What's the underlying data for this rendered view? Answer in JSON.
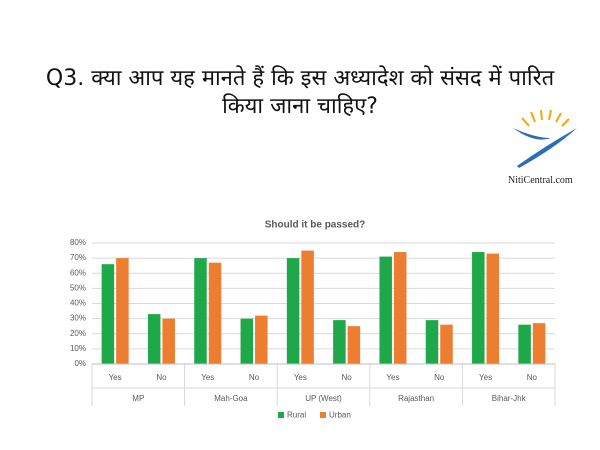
{
  "question_lines": [
    "Q3. क्या आप यह मानते हैं कि इस अध्यादेश को संसद में पारित",
    "किया जाना चाहिए?"
  ],
  "logo_text": "NitiCentral.com",
  "chart_data": {
    "type": "bar",
    "title": "Should it be passed?",
    "categories": [
      "Yes",
      "No",
      "Yes",
      "No",
      "Yes",
      "No",
      "Yes",
      "No",
      "Yes",
      "No"
    ],
    "groups": [
      "MP",
      "Mah-Goa",
      "UP (West)",
      "Rajasthan",
      "Bihar-Jhk"
    ],
    "series": [
      {
        "name": "Rural",
        "color": "#1fa84a",
        "values": [
          66,
          33,
          70,
          30,
          70,
          29,
          71,
          29,
          74,
          26
        ]
      },
      {
        "name": "Urban",
        "color": "#ed7d31",
        "values": [
          70,
          30,
          67,
          32,
          75,
          25,
          74,
          26,
          73,
          27
        ]
      }
    ],
    "ylim": [
      0,
      80
    ],
    "yticks": [
      {
        "value": 0,
        "label": "0%"
      },
      {
        "value": 10,
        "label": "10%"
      },
      {
        "value": 20,
        "label": "20%"
      },
      {
        "value": 30,
        "label": "30%"
      },
      {
        "value": 40,
        "label": "40%"
      },
      {
        "value": 50,
        "label": "50%"
      },
      {
        "value": 60,
        "label": "60%"
      },
      {
        "value": 70,
        "label": "70%"
      },
      {
        "value": 80,
        "label": "80%"
      }
    ],
    "grid": true,
    "legend": "bottom"
  }
}
